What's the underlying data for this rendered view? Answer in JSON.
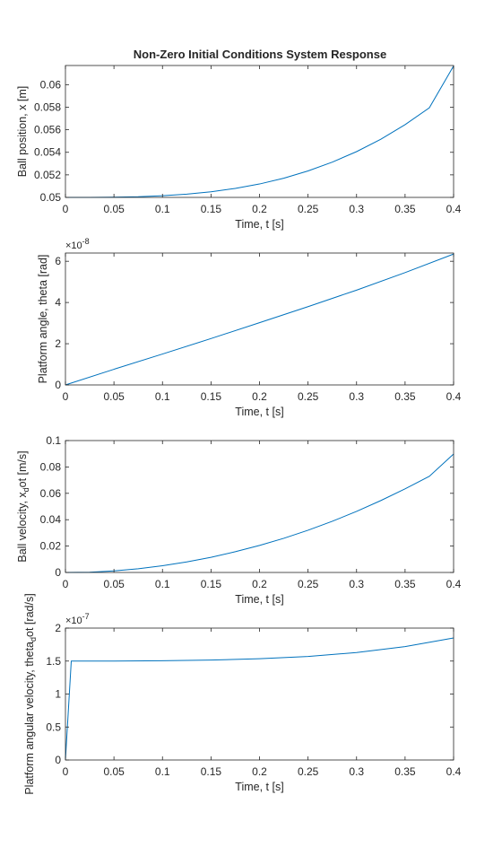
{
  "chart_data": [
    {
      "type": "line",
      "title": "Non-Zero Initial Conditions System Response",
      "xlabel": "Time, t [s]",
      "ylabel": "Ball position, x [m]",
      "xlim": [
        0,
        0.4
      ],
      "ylim": [
        0.05,
        0.0617
      ],
      "xticks": [
        0,
        0.05,
        0.1,
        0.15,
        0.2,
        0.25,
        0.3,
        0.35,
        0.4
      ],
      "xtick_labels": [
        "0",
        "0.05",
        "0.1",
        "0.15",
        "0.2",
        "0.25",
        "0.3",
        "0.35",
        "0.4"
      ],
      "yticks": [
        0.05,
        0.052,
        0.054,
        0.056,
        0.058,
        0.06
      ],
      "ytick_labels": [
        "0.05",
        "0.052",
        "0.054",
        "0.056",
        "0.058",
        "0.06"
      ],
      "y_exponent_label": "",
      "series": [
        {
          "color": "#0072bd",
          "x": [
            0,
            0.025,
            0.05,
            0.075,
            0.1,
            0.125,
            0.15,
            0.175,
            0.2,
            0.225,
            0.25,
            0.275,
            0.3,
            0.325,
            0.35,
            0.375,
            0.4
          ],
          "y": [
            0.05,
            0.05,
            0.05002,
            0.05006,
            0.05015,
            0.05029,
            0.0505,
            0.0508,
            0.05119,
            0.0517,
            0.05235,
            0.05313,
            0.05406,
            0.05516,
            0.05645,
            0.05795,
            0.06166
          ]
        }
      ]
    },
    {
      "type": "line",
      "title": "",
      "xlabel": "Time, t [s]",
      "ylabel": "Platform angle, theta [rad]",
      "xlim": [
        0,
        0.4
      ],
      "ylim": [
        0,
        6.4
      ],
      "xticks": [
        0,
        0.05,
        0.1,
        0.15,
        0.2,
        0.25,
        0.3,
        0.35,
        0.4
      ],
      "xtick_labels": [
        "0",
        "0.05",
        "0.1",
        "0.15",
        "0.2",
        "0.25",
        "0.3",
        "0.35",
        "0.4"
      ],
      "yticks": [
        0,
        2,
        4,
        6
      ],
      "ytick_labels": [
        "0",
        "2",
        "4",
        "6"
      ],
      "y_exponent_label": "×10",
      "y_exponent_power": "-8",
      "series": [
        {
          "color": "#0072bd",
          "x": [
            0,
            0.05,
            0.1,
            0.15,
            0.2,
            0.25,
            0.3,
            0.35,
            0.4
          ],
          "y": [
            0,
            0.76,
            1.5,
            2.25,
            3.02,
            3.8,
            4.6,
            5.45,
            6.35
          ]
        }
      ]
    },
    {
      "type": "line",
      "title": "",
      "xlabel": "Time, t [s]",
      "ylabel": "Ball velocity, x",
      "ylabel_sub": "d",
      "ylabel_after": "ot [m/s]",
      "xlim": [
        0,
        0.4
      ],
      "ylim": [
        0,
        0.1
      ],
      "xticks": [
        0,
        0.05,
        0.1,
        0.15,
        0.2,
        0.25,
        0.3,
        0.35,
        0.4
      ],
      "xtick_labels": [
        "0",
        "0.05",
        "0.1",
        "0.15",
        "0.2",
        "0.25",
        "0.3",
        "0.35",
        "0.4"
      ],
      "yticks": [
        0,
        0.02,
        0.04,
        0.06,
        0.08,
        0.1
      ],
      "ytick_labels": [
        "0",
        "0.02",
        "0.04",
        "0.06",
        "0.08",
        "0.1"
      ],
      "y_exponent_label": "",
      "series": [
        {
          "color": "#0072bd",
          "x": [
            0,
            0.025,
            0.05,
            0.075,
            0.1,
            0.125,
            0.15,
            0.175,
            0.2,
            0.225,
            0.25,
            0.275,
            0.3,
            0.325,
            0.35,
            0.375,
            0.4
          ],
          "y": [
            0,
            0.0002,
            0.0012,
            0.0028,
            0.0051,
            0.008,
            0.0115,
            0.0157,
            0.0205,
            0.0259,
            0.032,
            0.0388,
            0.0463,
            0.0545,
            0.0634,
            0.0729,
            0.0898
          ]
        }
      ]
    },
    {
      "type": "line",
      "title": "",
      "xlabel": "Time, t [s]",
      "ylabel": "Platform angular velocity, theta",
      "ylabel_sub": "d",
      "ylabel_after": "ot [rad/s]",
      "xlim": [
        0,
        0.4
      ],
      "ylim": [
        0,
        2
      ],
      "xticks": [
        0,
        0.05,
        0.1,
        0.15,
        0.2,
        0.25,
        0.3,
        0.35,
        0.4
      ],
      "xtick_labels": [
        "0",
        "0.05",
        "0.1",
        "0.15",
        "0.2",
        "0.25",
        "0.3",
        "0.35",
        "0.4"
      ],
      "yticks": [
        0,
        0.5,
        1,
        1.5,
        2
      ],
      "ytick_labels": [
        "0",
        "0.5",
        "1",
        "1.5",
        "2"
      ],
      "y_exponent_label": "×10",
      "y_exponent_power": "-7",
      "series": [
        {
          "color": "#0072bd",
          "x": [
            0,
            0.006,
            0.05,
            0.1,
            0.15,
            0.2,
            0.25,
            0.3,
            0.35,
            0.4
          ],
          "y": [
            0,
            1.5,
            1.5,
            1.505,
            1.515,
            1.535,
            1.57,
            1.63,
            1.72,
            1.85
          ]
        }
      ]
    }
  ]
}
